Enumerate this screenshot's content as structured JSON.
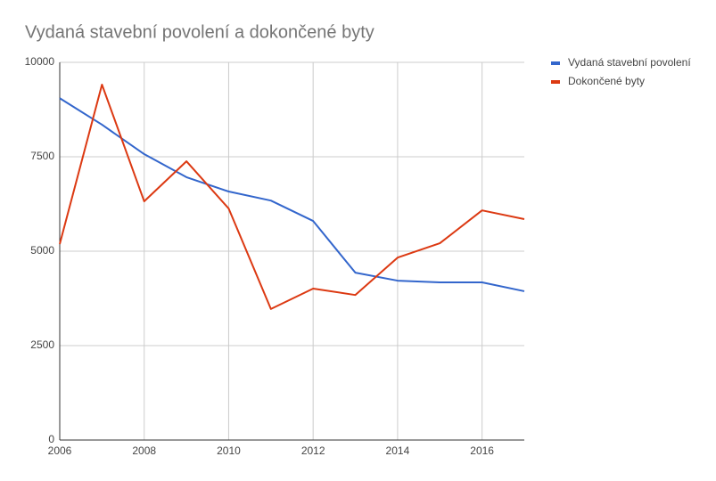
{
  "chart_data": {
    "type": "line",
    "title": "Vydaná stavební povolení a dokončené byty",
    "x": [
      2006,
      2007,
      2008,
      2009,
      2010,
      2011,
      2012,
      2013,
      2014,
      2015,
      2016,
      2017
    ],
    "series": [
      {
        "name": "Vydaná stavební povolení",
        "color": "#3366cc",
        "values": [
          9050,
          8350,
          7570,
          6960,
          6580,
          6340,
          5800,
          4430,
          4220,
          4175,
          4175,
          3940
        ]
      },
      {
        "name": "Dokončené byty",
        "color": "#dc3912",
        "values": [
          5190,
          9410,
          6320,
          7380,
          6130,
          3470,
          4010,
          3840,
          4830,
          5210,
          6080,
          5850
        ]
      }
    ],
    "xlim": [
      2006,
      2017
    ],
    "xticks": [
      2006,
      2008,
      2010,
      2012,
      2014,
      2016
    ],
    "ylim": [
      0,
      10000
    ],
    "yticks": [
      0,
      2500,
      5000,
      7500,
      10000
    ],
    "grid": true,
    "legend": "right"
  }
}
